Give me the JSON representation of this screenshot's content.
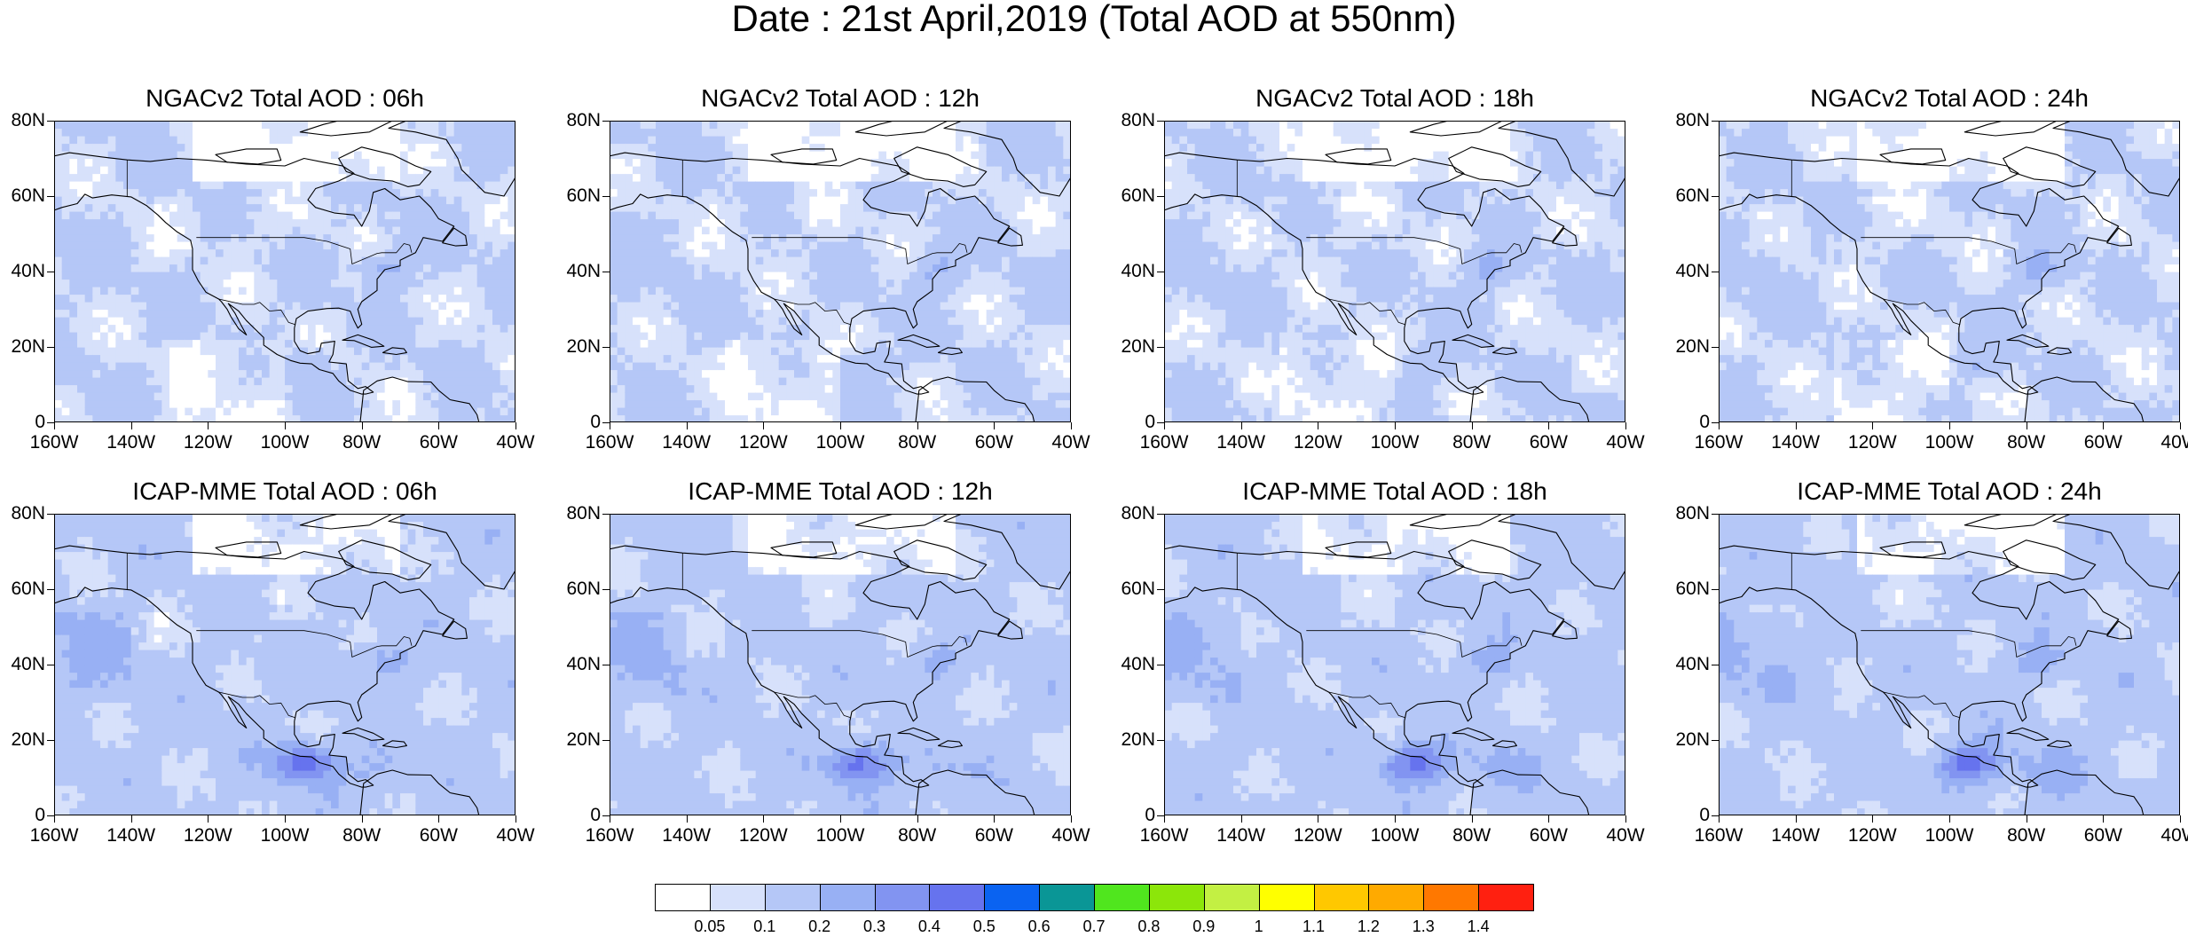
{
  "title": "Date : 21st April,2019 (Total AOD at 550nm)",
  "y_labels": [
    "80N",
    "60N",
    "40N",
    "20N",
    "0"
  ],
  "x_labels": [
    "160W",
    "140W",
    "120W",
    "100W",
    "80W",
    "60W",
    "40W"
  ],
  "panels": [
    {
      "title": "NGACv2 Total AOD : 06h",
      "model": "NGACv2",
      "hour": 6
    },
    {
      "title": "NGACv2 Total AOD : 12h",
      "model": "NGACv2",
      "hour": 12
    },
    {
      "title": "NGACv2 Total AOD : 18h",
      "model": "NGACv2",
      "hour": 18
    },
    {
      "title": "NGACv2 Total AOD : 24h",
      "model": "NGACv2",
      "hour": 24
    },
    {
      "title": "ICAP-MME Total AOD : 06h",
      "model": "ICAP-MME",
      "hour": 6
    },
    {
      "title": "ICAP-MME Total AOD : 12h",
      "model": "ICAP-MME",
      "hour": 12
    },
    {
      "title": "ICAP-MME Total AOD : 18h",
      "model": "ICAP-MME",
      "hour": 18
    },
    {
      "title": "ICAP-MME Total AOD : 24h",
      "model": "ICAP-MME",
      "hour": 24
    }
  ],
  "colorbar": {
    "labels": [
      "0.05",
      "0.1",
      "0.2",
      "0.3",
      "0.4",
      "0.5",
      "0.6",
      "0.7",
      "0.8",
      "0.9",
      "1",
      "1.1",
      "1.2",
      "1.3",
      "1.4"
    ],
    "colors": [
      "#ffffff",
      "#d7e1fb",
      "#b5c7f7",
      "#98b0f4",
      "#8294f1",
      "#6673ee",
      "#0a63f1",
      "#0a9696",
      "#50e61e",
      "#8ce60a",
      "#c3f043",
      "#ffff00",
      "#ffc800",
      "#ffaa00",
      "#ff7800",
      "#ff2010"
    ]
  }
}
